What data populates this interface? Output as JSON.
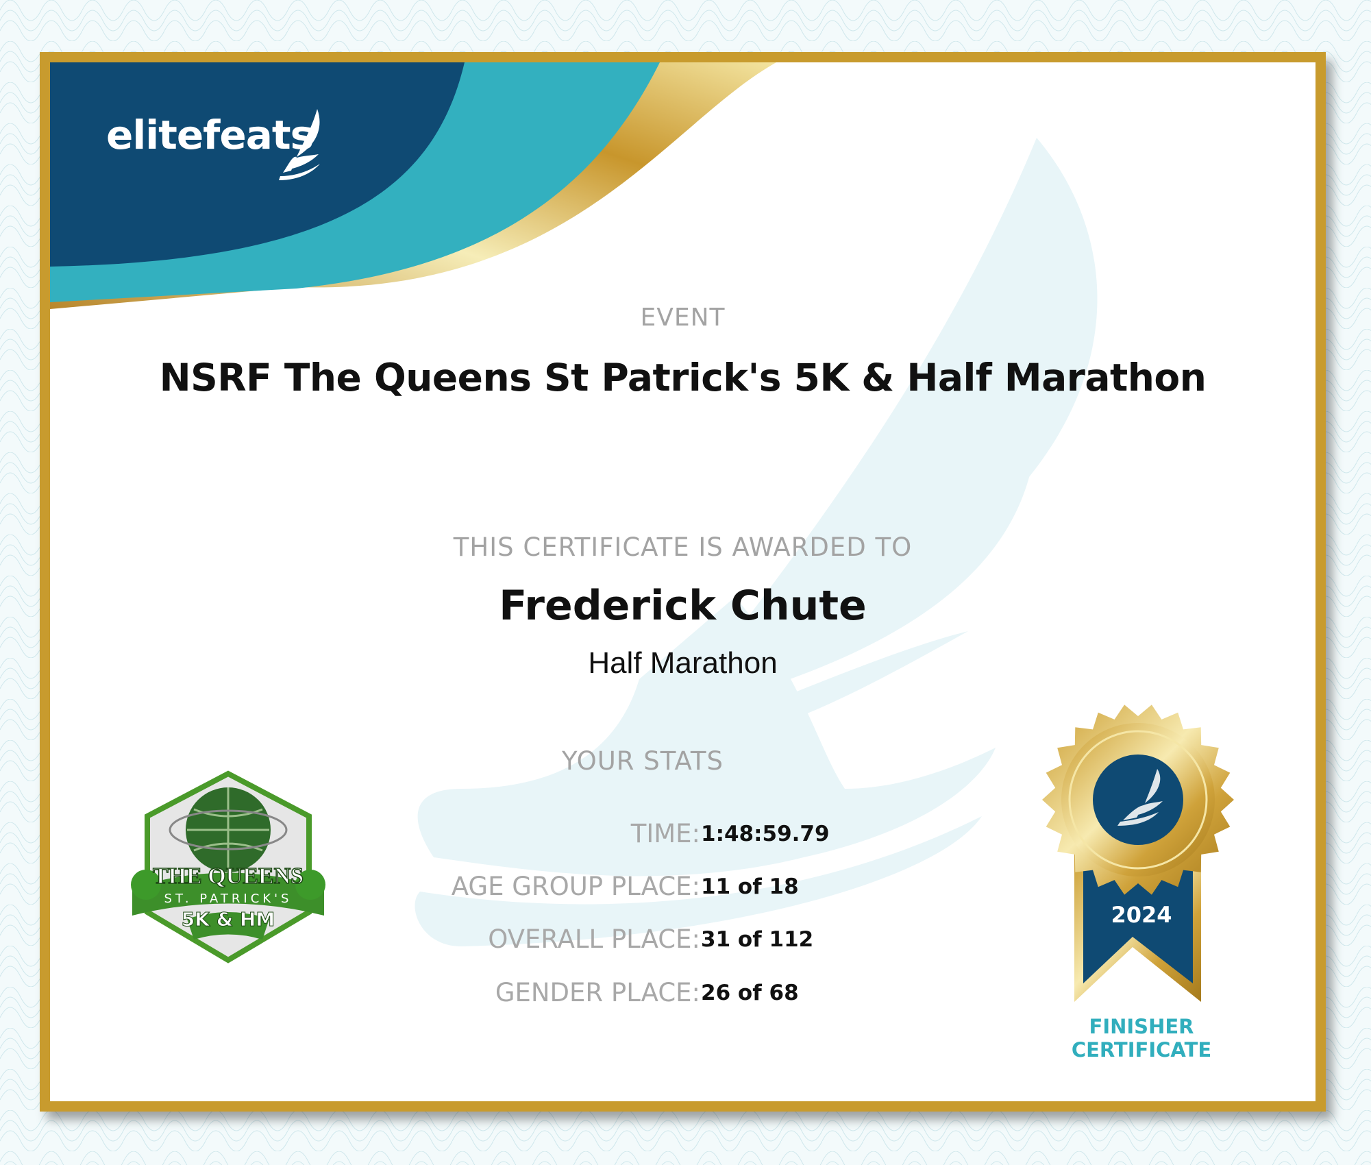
{
  "brand": {
    "name": "elitefeats",
    "logo_icon": "winged-foot-icon"
  },
  "colors": {
    "navy": "#0f4a73",
    "teal": "#33b0bf",
    "gold": "#c89b2e",
    "label_gray": "#a3a3a3",
    "finisher_teal": "#31aebd"
  },
  "event": {
    "label": "EVENT",
    "title": "NSRF The Queens St Patrick's 5K & Half Marathon"
  },
  "award": {
    "label": "THIS CERTIFICATE IS AWARDED TO",
    "name": "Frederick Chute",
    "race": "Half Marathon"
  },
  "stats": {
    "label": "YOUR STATS",
    "rows": [
      {
        "key": "TIME:",
        "value": "1:48:59.79"
      },
      {
        "key": "AGE GROUP PLACE:",
        "value": "11 of 18"
      },
      {
        "key": "OVERALL PLACE:",
        "value": "31 of 112"
      },
      {
        "key": "GENDER PLACE:",
        "value": "26 of 68"
      }
    ]
  },
  "event_logo": {
    "line1": "THE QUEENS",
    "line2": "ST. PATRICK'S",
    "line3": "5K & HM"
  },
  "medal": {
    "year": "2024",
    "line1": "FINISHER",
    "line2": "CERTIFICATE"
  }
}
